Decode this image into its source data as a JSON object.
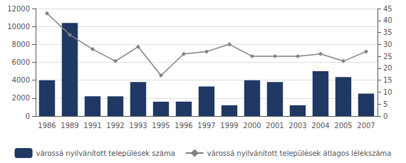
{
  "chart_data": {
    "type": "bar",
    "categories": [
      "1986",
      "1989",
      "1991",
      "1992",
      "1993",
      "1995",
      "1996",
      "1997",
      "1999",
      "2000",
      "2001",
      "2003",
      "2004",
      "2005",
      "2007"
    ],
    "series": [
      {
        "name": "várossá nyilvánított települések száma",
        "type": "bar",
        "color": "#1F3864",
        "values": [
          4000,
          10400,
          2200,
          2200,
          3800,
          1600,
          1600,
          3300,
          1200,
          4000,
          3800,
          1200,
          5000,
          4350,
          2500
        ]
      },
      {
        "name": "várossá nyilvánított települések átlagos lélekszáma",
        "type": "line",
        "color": "#808080",
        "marker": "diamond",
        "axis": "y2",
        "values": [
          43,
          34,
          28,
          23,
          29,
          17,
          26,
          27,
          30,
          25,
          25,
          25,
          26,
          23,
          27
        ]
      }
    ],
    "ylim": [
      0,
      12000
    ],
    "yticks": [
      0,
      2000,
      4000,
      6000,
      8000,
      10000,
      12000
    ],
    "y2lim": [
      0,
      45
    ],
    "y2ticks": [
      0,
      5,
      10,
      15,
      20,
      25,
      30,
      35,
      40,
      45
    ],
    "grid": true,
    "legend": "bottom"
  }
}
